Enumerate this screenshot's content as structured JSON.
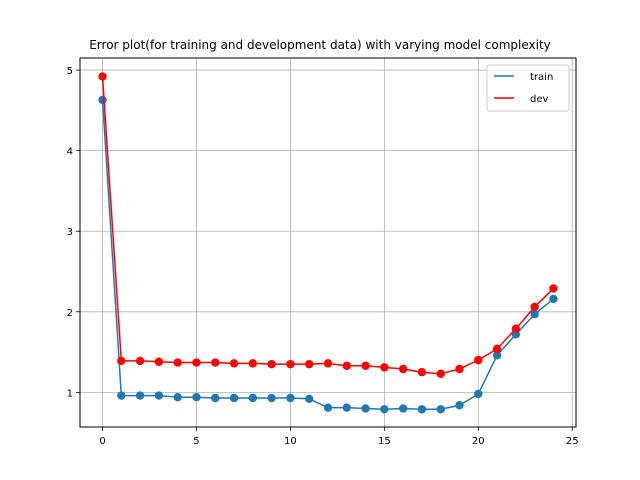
{
  "chart_data": {
    "type": "line",
    "title": "Error plot(for training and development data) with varying model complexity",
    "xlabel": "",
    "ylabel": "",
    "xlim": [
      -1.2,
      25.2
    ],
    "ylim": [
      0.57,
      5.15
    ],
    "xticks": [
      0,
      5,
      10,
      15,
      20,
      25
    ],
    "yticks": [
      1,
      2,
      3,
      4,
      5
    ],
    "grid": true,
    "legend_position": "top-right",
    "x": [
      0,
      1,
      2,
      3,
      4,
      5,
      6,
      7,
      8,
      9,
      10,
      11,
      12,
      13,
      14,
      15,
      16,
      17,
      18,
      19,
      20,
      21,
      22,
      23,
      24
    ],
    "series": [
      {
        "name": "train",
        "color": "#1f77b4",
        "values": [
          4.63,
          0.96,
          0.96,
          0.96,
          0.94,
          0.94,
          0.93,
          0.93,
          0.93,
          0.93,
          0.93,
          0.92,
          0.81,
          0.81,
          0.8,
          0.79,
          0.8,
          0.79,
          0.79,
          0.84,
          0.98,
          1.46,
          1.72,
          1.97,
          2.16
        ]
      },
      {
        "name": "dev",
        "color": "#ff0000",
        "values": [
          4.92,
          1.39,
          1.39,
          1.38,
          1.37,
          1.37,
          1.37,
          1.36,
          1.36,
          1.35,
          1.35,
          1.35,
          1.36,
          1.33,
          1.33,
          1.31,
          1.29,
          1.25,
          1.23,
          1.29,
          1.4,
          1.54,
          1.79,
          2.06,
          2.29
        ]
      }
    ]
  }
}
